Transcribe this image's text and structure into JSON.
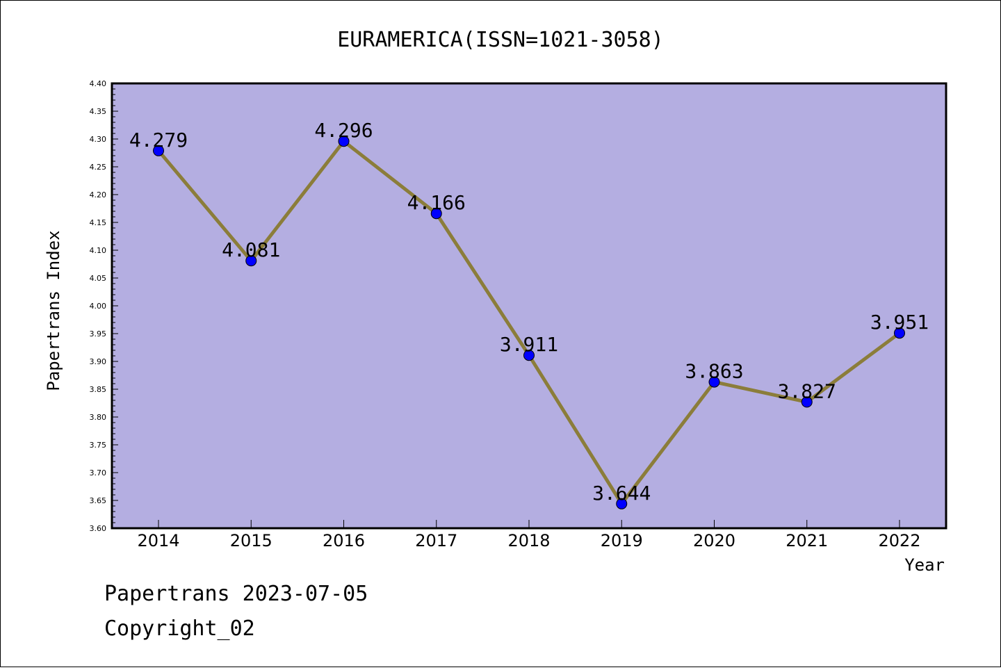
{
  "chart_data": {
    "type": "line",
    "title": "EURAMERICA(ISSN=1021-3058)",
    "xlabel": "Year",
    "ylabel": "Papertrans Index",
    "categories": [
      "2014",
      "2015",
      "2016",
      "2017",
      "2018",
      "2019",
      "2020",
      "2021",
      "2022"
    ],
    "series": [
      {
        "values": [
          4.279,
          4.081,
          4.296,
          4.166,
          3.911,
          3.644,
          3.863,
          3.827,
          3.951
        ],
        "data_labels": [
          "4.279",
          "4.081",
          "4.296",
          "4.166",
          "3.911",
          "3.644",
          "3.863",
          "3.827",
          "3.951"
        ]
      }
    ],
    "ylim": [
      3.6,
      4.4
    ],
    "yticks": [
      "3.60",
      "3.65",
      "3.70",
      "3.75",
      "3.80",
      "3.85",
      "3.90",
      "3.95",
      "4.00",
      "4.05",
      "4.10",
      "4.15",
      "4.20",
      "4.25",
      "4.30",
      "4.35",
      "4.40"
    ],
    "grid": false,
    "colors": {
      "plot_background": "#b4aee1",
      "line": "#8b7d3a",
      "marker": "#0000ff"
    }
  },
  "footer": {
    "line1": "Papertrans 2023-07-05",
    "line2": "Copyright_02"
  }
}
